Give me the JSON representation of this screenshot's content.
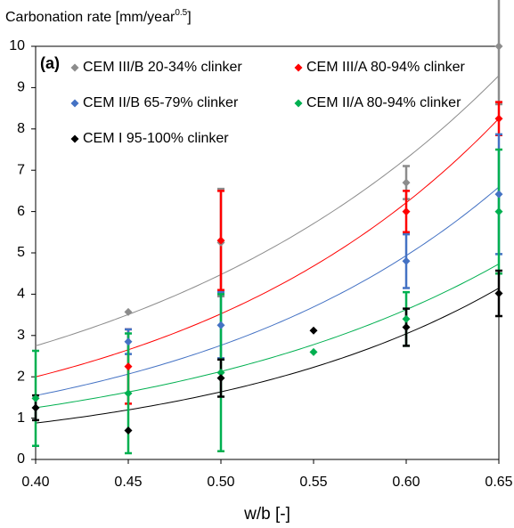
{
  "chart_data": {
    "type": "scatter",
    "ylabel_parts": [
      "Carbonation rate [mm/year",
      "0.5",
      "]"
    ],
    "xlabel": "w/b [-]",
    "annotation": "(a)",
    "xlim": [
      0.4,
      0.65
    ],
    "ylim": [
      0,
      10
    ],
    "xticks": [
      {
        "value": 0.4,
        "label": "0.40"
      },
      {
        "value": 0.45,
        "label": "0.45"
      },
      {
        "value": 0.5,
        "label": "0.50"
      },
      {
        "value": 0.55,
        "label": "0.55"
      },
      {
        "value": 0.6,
        "label": "0.60"
      },
      {
        "value": 0.65,
        "label": "0.65"
      }
    ],
    "yticks": [
      0,
      1,
      2,
      3,
      4,
      5,
      6,
      7,
      8,
      9,
      10
    ],
    "series": [
      {
        "name": "CEM III/B 20-34% clinker",
        "color": "#8c8c8c",
        "x": [
          0.45,
          0.5,
          0.6,
          0.65
        ],
        "values": [
          3.57,
          5.25,
          6.7,
          10.0
        ],
        "errors": [
          null,
          1.3,
          0.4,
          1.4
        ],
        "fit": {
          "a": 0.392,
          "b": 4.87
        }
      },
      {
        "name": "CEM III/A 80-94% clinker",
        "color": "#ff0000",
        "x": [
          0.45,
          0.5,
          0.6,
          0.65
        ],
        "values": [
          2.25,
          5.3,
          6.0,
          8.25
        ],
        "errors": [
          0.9,
          1.2,
          0.5,
          0.4
        ],
        "fit": {
          "a": 0.207,
          "b": 5.67
        }
      },
      {
        "name": "CEM II/B 65-79% clinker",
        "color": "#4472c4",
        "x": [
          0.45,
          0.5,
          0.6,
          0.65
        ],
        "values": [
          2.85,
          3.25,
          4.8,
          6.42
        ],
        "errors": [
          0.3,
          0.8,
          0.65,
          1.45
        ],
        "fit": {
          "a": 0.152,
          "b": 5.8
        }
      },
      {
        "name": "CEM II/A 80-94% clinker",
        "color": "#00b050",
        "x": [
          0.4,
          0.45,
          0.5,
          0.55,
          0.6,
          0.65
        ],
        "values": [
          1.48,
          1.6,
          2.1,
          2.6,
          3.4,
          6.0
        ],
        "errors": [
          1.15,
          1.45,
          1.9,
          null,
          0.65,
          1.5
        ],
        "fit": {
          "a": 0.149,
          "b": 5.32
        }
      },
      {
        "name": "CEM I 95-100% clinker",
        "color": "#000000",
        "x": [
          0.4,
          0.45,
          0.5,
          0.55,
          0.6,
          0.65
        ],
        "values": [
          1.25,
          0.7,
          1.97,
          3.12,
          3.2,
          4.02
        ],
        "errors": [
          0.3,
          null,
          0.45,
          null,
          0.45,
          0.55
        ],
        "fit": {
          "a": 0.0737,
          "b": 6.2
        }
      }
    ]
  }
}
